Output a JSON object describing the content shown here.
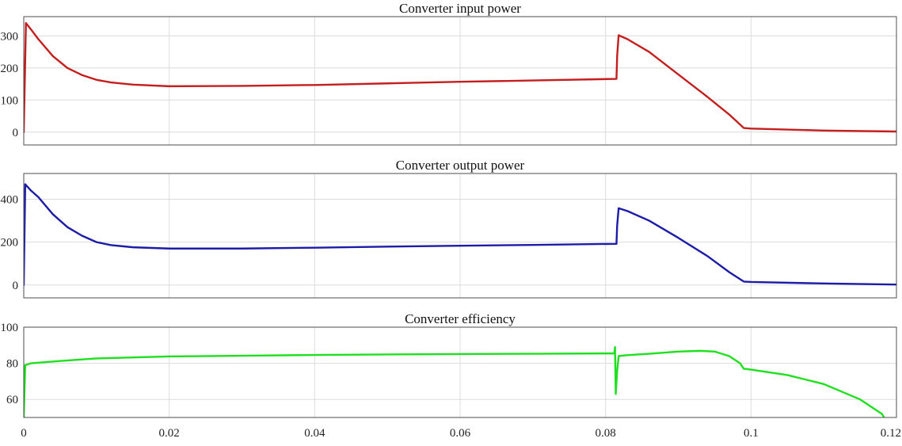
{
  "chart_data": [
    {
      "type": "line",
      "title": "Converter input power",
      "xlabel": "",
      "ylabel": "",
      "xlim": [
        0,
        0.12
      ],
      "ylim": [
        -40,
        360
      ],
      "yticks": [
        0,
        100,
        200,
        300
      ],
      "ytick_labels": [
        "0",
        "100",
        "200",
        "300"
      ],
      "grid": true,
      "color": "#c41e1e",
      "series": [
        {
          "points": [
            [
              0,
              0
            ],
            [
              0.0003,
              340
            ],
            [
              0.001,
              320
            ],
            [
              0.002,
              290
            ],
            [
              0.004,
              237
            ],
            [
              0.006,
              200
            ],
            [
              0.008,
              178
            ],
            [
              0.01,
              163
            ],
            [
              0.012,
              155
            ],
            [
              0.015,
              148
            ],
            [
              0.02,
              143
            ],
            [
              0.03,
              144
            ],
            [
              0.04,
              147
            ],
            [
              0.05,
              152
            ],
            [
              0.06,
              157
            ],
            [
              0.07,
              161
            ],
            [
              0.0815,
              166
            ],
            [
              0.0816,
              240
            ],
            [
              0.0818,
              302
            ],
            [
              0.083,
              290
            ],
            [
              0.086,
              250
            ],
            [
              0.09,
              180
            ],
            [
              0.094,
              110
            ],
            [
              0.097,
              55
            ],
            [
              0.099,
              13
            ],
            [
              0.1,
              11
            ],
            [
              0.11,
              5
            ],
            [
              0.12,
              2
            ]
          ]
        }
      ]
    },
    {
      "type": "line",
      "title": "Converter output power",
      "xlabel": "",
      "ylabel": "",
      "xlim": [
        0,
        0.12
      ],
      "ylim": [
        -60,
        520
      ],
      "yticks": [
        0,
        200,
        400
      ],
      "ytick_labels": [
        "0",
        "200",
        "400"
      ],
      "grid": true,
      "color": "#1c1ca8",
      "series": [
        {
          "points": [
            [
              0,
              0
            ],
            [
              0.0002,
              470
            ],
            [
              0.001,
              440
            ],
            [
              0.002,
              410
            ],
            [
              0.004,
              330
            ],
            [
              0.006,
              270
            ],
            [
              0.008,
              230
            ],
            [
              0.01,
              200
            ],
            [
              0.012,
              186
            ],
            [
              0.015,
              176
            ],
            [
              0.02,
              170
            ],
            [
              0.03,
              170
            ],
            [
              0.04,
              174
            ],
            [
              0.05,
              179
            ],
            [
              0.06,
              183
            ],
            [
              0.07,
              187
            ],
            [
              0.0815,
              192
            ],
            [
              0.0816,
              280
            ],
            [
              0.0818,
              358
            ],
            [
              0.083,
              345
            ],
            [
              0.086,
              300
            ],
            [
              0.09,
              220
            ],
            [
              0.094,
              135
            ],
            [
              0.097,
              60
            ],
            [
              0.099,
              16
            ],
            [
              0.1,
              14
            ],
            [
              0.11,
              7
            ],
            [
              0.12,
              2
            ]
          ]
        }
      ]
    },
    {
      "type": "line",
      "title": "Converter efficiency",
      "xlabel": "",
      "ylabel": "",
      "xlim": [
        0,
        0.12
      ],
      "ylim": [
        50,
        100
      ],
      "yticks": [
        60,
        80,
        100
      ],
      "ytick_labels": [
        "60",
        "80",
        "100"
      ],
      "xticks": [
        0,
        0.02,
        0.04,
        0.06,
        0.08,
        0.1,
        0.12
      ],
      "xtick_labels": [
        "0",
        "0.02",
        "0.04",
        "0.06",
        "0.08",
        "0.1",
        "0.12"
      ],
      "grid": true,
      "color": "#1ee01e",
      "series": [
        {
          "points": [
            [
              0,
              50
            ],
            [
              0.0002,
              79
            ],
            [
              0.001,
              80
            ],
            [
              0.005,
              81.3
            ],
            [
              0.01,
              82.7
            ],
            [
              0.02,
              83.8
            ],
            [
              0.03,
              84.2
            ],
            [
              0.04,
              84.6
            ],
            [
              0.05,
              84.9
            ],
            [
              0.06,
              85.1
            ],
            [
              0.07,
              85.3
            ],
            [
              0.0812,
              85.5
            ],
            [
              0.0813,
              89
            ],
            [
              0.0814,
              63
            ],
            [
              0.0816,
              76
            ],
            [
              0.0818,
              84
            ],
            [
              0.083,
              84.5
            ],
            [
              0.086,
              85.3
            ],
            [
              0.09,
              86.5
            ],
            [
              0.093,
              86.9
            ],
            [
              0.095,
              86.5
            ],
            [
              0.097,
              84
            ],
            [
              0.0985,
              80
            ],
            [
              0.099,
              77
            ],
            [
              0.1,
              76.5
            ],
            [
              0.105,
              73.5
            ],
            [
              0.11,
              68.5
            ],
            [
              0.115,
              60
            ],
            [
              0.118,
              52
            ],
            [
              0.1183,
              50
            ]
          ]
        }
      ]
    }
  ]
}
